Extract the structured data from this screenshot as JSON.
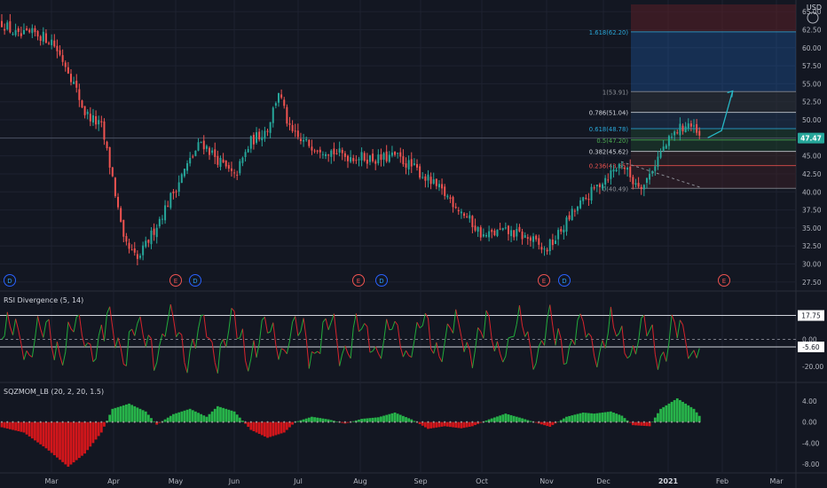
{
  "currency": "USD",
  "colors": {
    "background": "#131722",
    "grid": "#1e2230",
    "up": "#26a69a",
    "down": "#ef5350",
    "rsi_up": "#22ab3c",
    "rsi_down": "#d7242c",
    "mom_up": "#27b34a",
    "mom_down": "#d1161b",
    "fib_target": "#1f6fd1",
    "last_price_bg": "#26a69a",
    "projection": "#26b6c4"
  },
  "time_axis": {
    "labels": [
      "Mar",
      "Apr",
      "May",
      "Jun",
      "Jul",
      "Aug",
      "Sep",
      "Oct",
      "Nov",
      "Dec",
      "2021",
      "Feb",
      "Mar"
    ],
    "bold_label": "2021"
  },
  "price_axis": {
    "ticks": [
      "65.00",
      "62.50",
      "60.00",
      "57.50",
      "55.00",
      "52.50",
      "50.00",
      "47.50",
      "45.00",
      "42.50",
      "40.00",
      "37.50",
      "35.00",
      "32.50",
      "30.00",
      "27.50"
    ],
    "last_price": "47.47"
  },
  "fib_levels": [
    {
      "label": "1.618(62.20)",
      "value": 62.2,
      "color": "#2aa7d8"
    },
    {
      "label": "1(53.91)",
      "value": 53.91,
      "color": "#8f9299"
    },
    {
      "label": "0.786(51.04)",
      "value": 51.04,
      "color": "#d1d4dc"
    },
    {
      "label": "0.618(48.78)",
      "value": 48.78,
      "color": "#2aa7d8"
    },
    {
      "label": "0.5(47.20)",
      "value": 47.2,
      "color": "#4caf50"
    },
    {
      "label": "0.382(45.62)",
      "value": 45.62,
      "color": "#d1d4dc"
    },
    {
      "label": "0.236(43.65)",
      "value": 43.65,
      "color": "#ef5350"
    },
    {
      "label": "0(40.49)",
      "value": 40.49,
      "color": "#8f9299"
    }
  ],
  "event_markers": {
    "dividends": [
      "D",
      "D",
      "D",
      "D"
    ],
    "earnings": [
      "E",
      "E",
      "E",
      "E"
    ]
  },
  "rsi_pane": {
    "title": "RSI Divergence (5, 14)",
    "ticks": [
      "0.00",
      "-20.00"
    ],
    "level_labels": [
      "17.75",
      "-5.60"
    ]
  },
  "mom_pane": {
    "title": "SQZMOM_LB (20, 2, 20, 1.5)",
    "ticks": [
      "4.00",
      "0.00",
      "-4.00",
      "-8.00"
    ]
  },
  "chart_data": {
    "type": "candlestick",
    "price_range": [
      26.5,
      66
    ],
    "price_path": [
      [
        0,
        63.5
      ],
      [
        6,
        61.5
      ],
      [
        12,
        62
      ],
      [
        18,
        61
      ],
      [
        24,
        57
      ],
      [
        30,
        51
      ],
      [
        36,
        49
      ],
      [
        40,
        42
      ],
      [
        44,
        33
      ],
      [
        49,
        30.5
      ],
      [
        54,
        34
      ],
      [
        60,
        38.5
      ],
      [
        66,
        43
      ],
      [
        72,
        47
      ],
      [
        78,
        44.5
      ],
      [
        84,
        42
      ],
      [
        90,
        47
      ],
      [
        96,
        48.8
      ],
      [
        100,
        54
      ],
      [
        104,
        48.5
      ],
      [
        108,
        47
      ],
      [
        112,
        46.5
      ],
      [
        118,
        45.8
      ],
      [
        124,
        45
      ],
      [
        130,
        44.8
      ],
      [
        136,
        44.5
      ],
      [
        142,
        45
      ],
      [
        146,
        44
      ],
      [
        150,
        43
      ],
      [
        156,
        41
      ],
      [
        162,
        39
      ],
      [
        168,
        36.5
      ],
      [
        174,
        33.8
      ],
      [
        180,
        34.5
      ],
      [
        186,
        34.2
      ],
      [
        192,
        33.2
      ],
      [
        196,
        31.8
      ],
      [
        200,
        33.5
      ],
      [
        206,
        37
      ],
      [
        212,
        39.5
      ],
      [
        218,
        42
      ],
      [
        224,
        44
      ],
      [
        228,
        41.5
      ],
      [
        232,
        41
      ],
      [
        238,
        45.5
      ],
      [
        244,
        48.5
      ],
      [
        248,
        49.5
      ],
      [
        252,
        47.5
      ]
    ],
    "projection": [
      [
        255,
        47.5
      ],
      [
        260,
        48.5
      ],
      [
        264,
        54
      ]
    ],
    "rsi_levels": [
      17.75,
      0,
      -5.6
    ],
    "momentum_range": [
      -8.5,
      5
    ],
    "momentum_path": [
      [
        0,
        -1
      ],
      [
        8,
        -2
      ],
      [
        16,
        -5
      ],
      [
        24,
        -8.5
      ],
      [
        30,
        -6
      ],
      [
        36,
        -2
      ],
      [
        40,
        2.5
      ],
      [
        46,
        3.5
      ],
      [
        52,
        2
      ],
      [
        56,
        -0.5
      ],
      [
        62,
        1.5
      ],
      [
        68,
        2.5
      ],
      [
        74,
        1
      ],
      [
        78,
        3
      ],
      [
        84,
        2
      ],
      [
        90,
        -1.5
      ],
      [
        96,
        -3
      ],
      [
        102,
        -2
      ],
      [
        106,
        0
      ],
      [
        112,
        1
      ],
      [
        118,
        0.5
      ],
      [
        124,
        -0.3
      ],
      [
        130,
        0.6
      ],
      [
        136,
        0.9
      ],
      [
        142,
        1.8
      ],
      [
        148,
        0.5
      ],
      [
        154,
        -1.3
      ],
      [
        160,
        -0.8
      ],
      [
        166,
        -1.2
      ],
      [
        170,
        -0.8
      ],
      [
        176,
        0.5
      ],
      [
        182,
        1.6
      ],
      [
        188,
        0.7
      ],
      [
        194,
        -0.3
      ],
      [
        198,
        -0.9
      ],
      [
        204,
        1
      ],
      [
        210,
        1.8
      ],
      [
        214,
        1.6
      ],
      [
        220,
        2
      ],
      [
        224,
        1.2
      ],
      [
        228,
        -0.6
      ],
      [
        234,
        -0.8
      ],
      [
        238,
        2.5
      ],
      [
        244,
        4.5
      ],
      [
        250,
        2.5
      ],
      [
        253,
        0.5
      ]
    ]
  }
}
